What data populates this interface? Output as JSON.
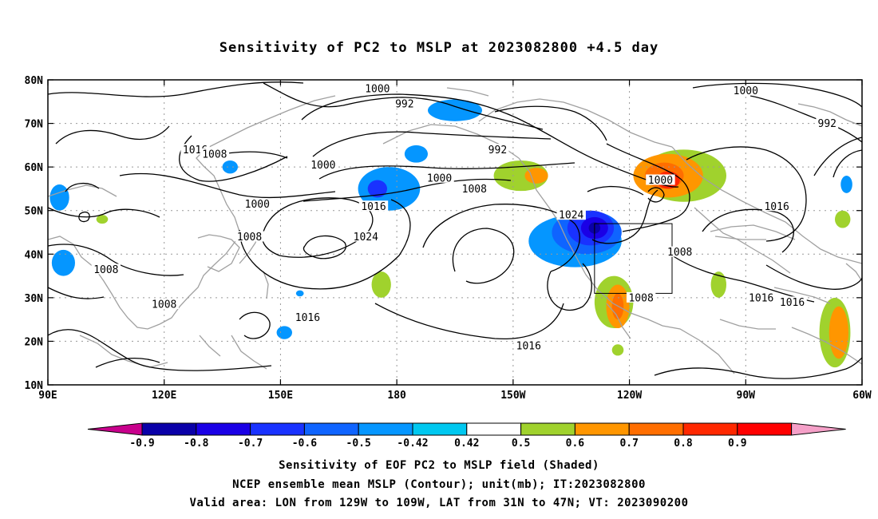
{
  "title": "Sensitivity of PC2 to MSLP at 2023082800 +4.5 day",
  "axes": {
    "lat_labels": [
      "80N",
      "70N",
      "60N",
      "50N",
      "40N",
      "30N",
      "20N",
      "10N"
    ],
    "lon_labels": [
      "90E",
      "120E",
      "150E",
      "180",
      "150W",
      "120W",
      "90W",
      "60W"
    ]
  },
  "contour_labels": [
    {
      "text": "1000",
      "lon": 175,
      "lat": 78
    },
    {
      "text": "992",
      "lon": 182,
      "lat": 74.5
    },
    {
      "text": "1000",
      "lon": 270,
      "lat": 77.5
    },
    {
      "text": "992",
      "lon": 291,
      "lat": 70
    },
    {
      "text": "1016",
      "lon": 128,
      "lat": 64
    },
    {
      "text": "1008",
      "lon": 133,
      "lat": 63
    },
    {
      "text": "1000",
      "lon": 161,
      "lat": 60.5
    },
    {
      "text": "992",
      "lon": 206,
      "lat": 64
    },
    {
      "text": "1000",
      "lon": 191,
      "lat": 57.5
    },
    {
      "text": "1008",
      "lon": 200,
      "lat": 55
    },
    {
      "text": "1000",
      "lon": 248,
      "lat": 57
    },
    {
      "text": "1016",
      "lon": 174,
      "lat": 51
    },
    {
      "text": "1000",
      "lon": 144,
      "lat": 51.5
    },
    {
      "text": "1024",
      "lon": 225,
      "lat": 49
    },
    {
      "text": "1016",
      "lon": 278,
      "lat": 51
    },
    {
      "text": "1008",
      "lon": 142,
      "lat": 44
    },
    {
      "text": "1024",
      "lon": 172,
      "lat": 44
    },
    {
      "text": "1008",
      "lon": 253,
      "lat": 40.5
    },
    {
      "text": "1008",
      "lon": 105,
      "lat": 36.5
    },
    {
      "text": "1008",
      "lon": 243,
      "lat": 30
    },
    {
      "text": "1016",
      "lon": 274,
      "lat": 30
    },
    {
      "text": "1016",
      "lon": 282,
      "lat": 29
    },
    {
      "text": "1008",
      "lon": 120,
      "lat": 28.5
    },
    {
      "text": "1016",
      "lon": 157,
      "lat": 25.5
    },
    {
      "text": "1016",
      "lon": 214,
      "lat": 19
    }
  ],
  "colorbar": {
    "labels": [
      "-0.9",
      "-0.8",
      "-0.7",
      "-0.6",
      "-0.5",
      "-0.42",
      "0.42",
      "0.5",
      "0.6",
      "0.7",
      "0.8",
      "0.9"
    ],
    "colors": [
      "#0a00a8",
      "#1a00e6",
      "#1932ff",
      "#0f64ff",
      "#0596ff",
      "#00c8f0",
      "#ffffff",
      "#a0d22d",
      "#ff9600",
      "#ff6e00",
      "#ff2800",
      "#ff0000"
    ],
    "low_end_color": "#c8008c",
    "high_end_color": "#f5a0c8"
  },
  "footer": {
    "line1": "Sensitivity of EOF PC2 to MSLP field (Shaded)",
    "line2": "NCEP ensemble mean MSLP (Contour); unit(mb); IT:2023082800",
    "line3": "Valid area: LON from 129W to 109W, LAT from 31N to 47N; VT: 2023090200"
  },
  "valid_area": {
    "lon_min": 231,
    "lon_max": 251,
    "lat_min": 31,
    "lat_max": 47
  },
  "shaded_regions": [
    {
      "lon": 93,
      "lat": 53,
      "rx": 2.5,
      "ry": 3,
      "value": -0.45
    },
    {
      "lon": 94,
      "lat": 38,
      "rx": 3,
      "ry": 3,
      "value": -0.45
    },
    {
      "lon": 104,
      "lat": 48,
      "rx": 1.5,
      "ry": 1,
      "value": 0.45
    },
    {
      "lon": 137,
      "lat": 60,
      "rx": 2,
      "ry": 1.5,
      "value": -0.45
    },
    {
      "lon": 195,
      "lat": 73,
      "rx": 7,
      "ry": 2.5,
      "value": -0.45
    },
    {
      "lon": 185,
      "lat": 63,
      "rx": 3,
      "ry": 2,
      "value": -0.45
    },
    {
      "lon": 178,
      "lat": 55,
      "rx": 8,
      "ry": 5,
      "value": -0.5
    },
    {
      "lon": 175,
      "lat": 55,
      "rx": 2.5,
      "ry": 2,
      "value": -0.62
    },
    {
      "lon": 176,
      "lat": 33,
      "rx": 2.5,
      "ry": 3,
      "value": 0.45
    },
    {
      "lon": 155,
      "lat": 31,
      "rx": 1,
      "ry": 0.7,
      "value": -0.45
    },
    {
      "lon": 151,
      "lat": 22,
      "rx": 2,
      "ry": 1.5,
      "value": -0.45
    },
    {
      "lon": 212,
      "lat": 58,
      "rx": 7,
      "ry": 3.5,
      "value": 0.45
    },
    {
      "lon": 216,
      "lat": 58,
      "rx": 3,
      "ry": 1.8,
      "value": 0.55
    },
    {
      "lon": 254,
      "lat": 58,
      "rx": 11,
      "ry": 6,
      "value": 0.45
    },
    {
      "lon": 250,
      "lat": 58,
      "rx": 9,
      "ry": 5,
      "value": 0.55
    },
    {
      "lon": 249,
      "lat": 58,
      "rx": 5,
      "ry": 3,
      "value": 0.65
    },
    {
      "lon": 250,
      "lat": 57,
      "rx": 3,
      "ry": 2,
      "value": 0.75
    },
    {
      "lon": 226,
      "lat": 43,
      "rx": 12,
      "ry": 6,
      "value": -0.45
    },
    {
      "lon": 229,
      "lat": 45,
      "rx": 9,
      "ry": 5,
      "value": -0.55
    },
    {
      "lon": 230,
      "lat": 46,
      "rx": 6,
      "ry": 4,
      "value": -0.65
    },
    {
      "lon": 231,
      "lat": 46,
      "rx": 3.5,
      "ry": 2.5,
      "value": -0.75
    },
    {
      "lon": 231,
      "lat": 46,
      "rx": 1.5,
      "ry": 1.3,
      "value": -0.85
    },
    {
      "lon": 236,
      "lat": 29,
      "rx": 5,
      "ry": 6,
      "value": 0.45
    },
    {
      "lon": 237,
      "lat": 28,
      "rx": 3,
      "ry": 5,
      "value": 0.55
    },
    {
      "lon": 237,
      "lat": 28,
      "rx": 1.5,
      "ry": 3,
      "value": 0.65
    },
    {
      "lon": 263,
      "lat": 33,
      "rx": 2,
      "ry": 3,
      "value": 0.45
    },
    {
      "lon": 237,
      "lat": 18,
      "rx": 1.5,
      "ry": 1.3,
      "value": 0.45
    },
    {
      "lon": 293,
      "lat": 22,
      "rx": 4,
      "ry": 8,
      "value": 0.45
    },
    {
      "lon": 294,
      "lat": 22,
      "rx": 2.5,
      "ry": 6,
      "value": 0.55
    },
    {
      "lon": 296,
      "lat": 56,
      "rx": 1.5,
      "ry": 2,
      "value": -0.45
    },
    {
      "lon": 295,
      "lat": 48,
      "rx": 2,
      "ry": 2,
      "value": 0.45
    }
  ]
}
